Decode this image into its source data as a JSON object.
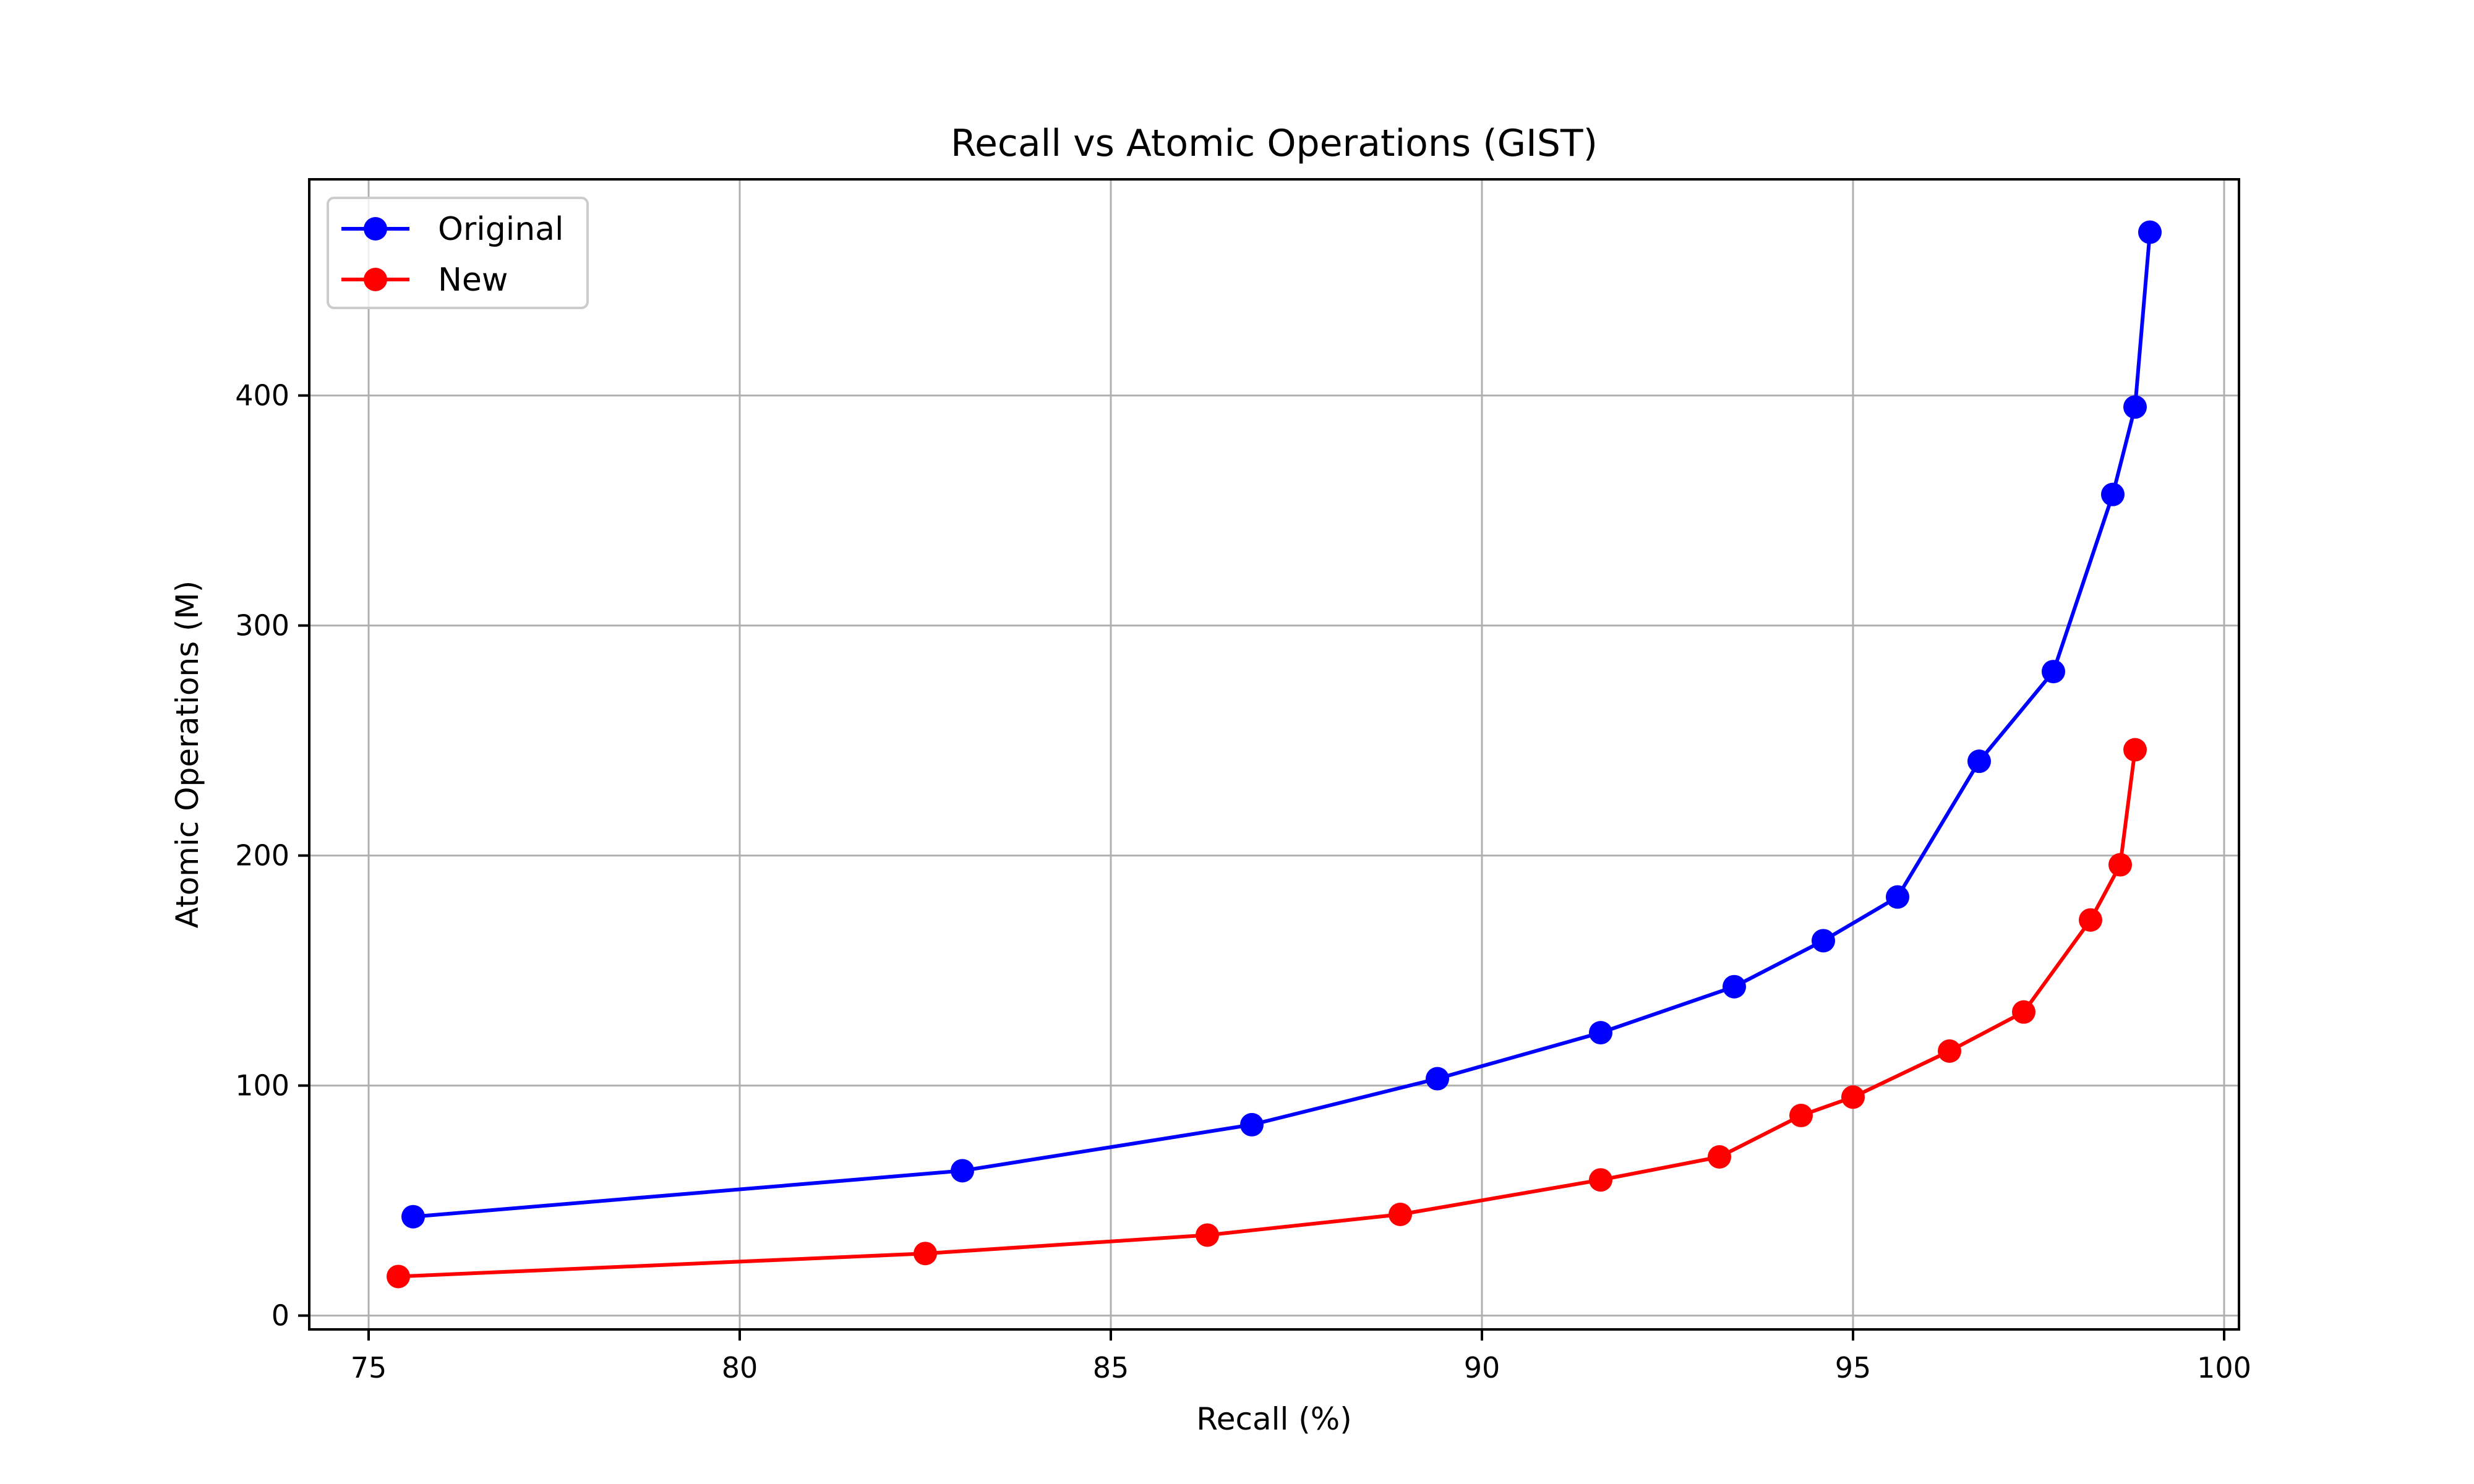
{
  "chart_data": {
    "type": "line",
    "title": "Recall vs Atomic Operations (GIST)",
    "xlabel": "Recall (%)",
    "ylabel": "Atomic Operations (M)",
    "xlim": [
      74.2,
      100.2
    ],
    "ylim": [
      -6,
      494
    ],
    "xticks": [
      75,
      80,
      85,
      90,
      95,
      100
    ],
    "yticks": [
      0,
      100,
      200,
      300,
      400
    ],
    "grid": true,
    "legend_position": "top-left",
    "series": [
      {
        "name": "Original",
        "color": "#0000ff",
        "marker": "circle",
        "x": [
          75.6,
          83.0,
          86.9,
          89.4,
          91.6,
          93.4,
          94.6,
          95.6,
          96.7,
          97.7,
          98.5,
          98.8,
          99.0
        ],
        "y": [
          43,
          63,
          83,
          103,
          123,
          143,
          163,
          182,
          241,
          280,
          357,
          395,
          471
        ]
      },
      {
        "name": "New",
        "color": "#ff0000",
        "marker": "circle",
        "x": [
          75.4,
          82.5,
          86.3,
          88.9,
          91.6,
          93.2,
          94.3,
          95.0,
          96.3,
          97.3,
          98.2,
          98.6,
          98.8
        ],
        "y": [
          17,
          27,
          35,
          44,
          59,
          69,
          87,
          95,
          115,
          132,
          172,
          196,
          246
        ]
      }
    ]
  }
}
